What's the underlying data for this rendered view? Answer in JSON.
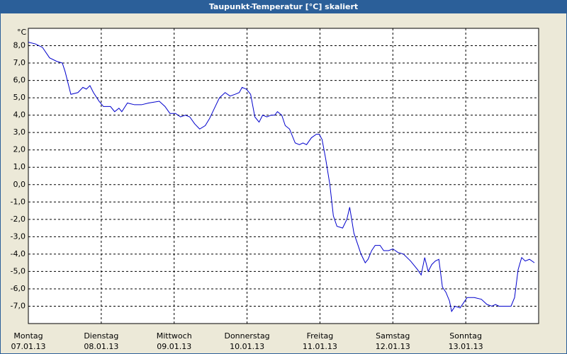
{
  "chart_data": {
    "type": "line",
    "title": "Taupunkt-Temperatur [°C] skaliert",
    "unit": "°C",
    "xlim": [
      0,
      7
    ],
    "xticks": [
      {
        "value": 0,
        "label": "Montag",
        "date": "07.01.13"
      },
      {
        "value": 1,
        "label": "Dienstag",
        "date": "08.01.13"
      },
      {
        "value": 2,
        "label": "Mittwoch",
        "date": "09.01.13"
      },
      {
        "value": 3,
        "label": "Donnerstag",
        "date": "10.01.13"
      },
      {
        "value": 4,
        "label": "Freitag",
        "date": "11.01.13"
      },
      {
        "value": 5,
        "label": "Samstag",
        "date": "12.01.13"
      },
      {
        "value": 6,
        "label": "Sonntag",
        "date": "13.01.13"
      }
    ],
    "ylim": [
      -8,
      9
    ],
    "yticks": [
      {
        "value": 8,
        "label": "8,0"
      },
      {
        "value": 7,
        "label": "7,0"
      },
      {
        "value": 6,
        "label": "6,0"
      },
      {
        "value": 5,
        "label": "5,0"
      },
      {
        "value": 4,
        "label": "4,0"
      },
      {
        "value": 3,
        "label": "3,0"
      },
      {
        "value": 2,
        "label": "2,0"
      },
      {
        "value": 1,
        "label": "1,0"
      },
      {
        "value": 0,
        "label": "0,0"
      },
      {
        "value": -1,
        "label": "-1,0"
      },
      {
        "value": -2,
        "label": "-2,0"
      },
      {
        "value": -3,
        "label": "-3,0"
      },
      {
        "value": -4,
        "label": "-4,0"
      },
      {
        "value": -5,
        "label": "-5,0"
      },
      {
        "value": -6,
        "label": "-6,0"
      },
      {
        "value": -7,
        "label": "-7,0"
      }
    ],
    "grid": true,
    "series": [
      {
        "color": "#0000cc",
        "x": [
          0,
          0.097,
          0.194,
          0.291,
          0.388,
          0.466,
          0.505,
          0.583,
          0.68,
          0.748,
          0.796,
          0.845,
          0.893,
          0.971,
          1.029,
          1.126,
          1.184,
          1.243,
          1.282,
          1.359,
          1.456,
          1.553,
          1.65,
          1.796,
          1.874,
          1.942,
          2.019,
          2.087,
          2.155,
          2.214,
          2.282,
          2.35,
          2.427,
          2.485,
          2.553,
          2.621,
          2.699,
          2.767,
          2.835,
          2.893,
          2.932,
          2.99,
          3.049,
          3.107,
          3.165,
          3.214,
          3.272,
          3.33,
          3.379,
          3.417,
          3.476,
          3.524,
          3.583,
          3.66,
          3.718,
          3.767,
          3.816,
          3.883,
          3.951,
          3.99,
          4.029,
          4.078,
          4.136,
          4.184,
          4.233,
          4.311,
          4.369,
          4.408,
          4.466,
          4.515,
          4.563,
          4.621,
          4.66,
          4.709,
          4.757,
          4.825,
          4.874,
          4.942,
          5.0,
          5.068,
          5.146,
          5.243,
          5.34,
          5.388,
          5.437,
          5.485,
          5.534,
          5.583,
          5.631,
          5.68,
          5.728,
          5.777,
          5.806,
          5.854,
          5.922,
          5.971,
          6.019,
          6.117,
          6.214,
          6.291,
          6.359,
          6.408,
          6.456,
          6.553,
          6.621,
          6.67,
          6.718,
          6.767,
          6.816,
          6.874,
          6.942
        ],
        "values": [
          8.2,
          8.1,
          7.9,
          7.3,
          7.1,
          7.0,
          6.5,
          5.2,
          5.3,
          5.6,
          5.5,
          5.7,
          5.3,
          4.8,
          4.5,
          4.5,
          4.2,
          4.4,
          4.2,
          4.7,
          4.6,
          4.6,
          4.7,
          4.8,
          4.5,
          4.1,
          4.1,
          3.9,
          4.0,
          3.9,
          3.5,
          3.2,
          3.4,
          3.8,
          4.4,
          5.0,
          5.3,
          5.1,
          5.2,
          5.3,
          5.6,
          5.5,
          5.2,
          3.9,
          3.6,
          4.0,
          3.9,
          4.0,
          4.0,
          4.2,
          4.0,
          3.4,
          3.2,
          2.4,
          2.3,
          2.4,
          2.3,
          2.7,
          2.9,
          2.9,
          2.6,
          1.5,
          0.0,
          -1.8,
          -2.4,
          -2.5,
          -2.0,
          -1.3,
          -2.8,
          -3.4,
          -4.0,
          -4.5,
          -4.3,
          -3.8,
          -3.5,
          -3.5,
          -3.8,
          -3.8,
          -3.7,
          -3.9,
          -4.0,
          -4.4,
          -4.9,
          -5.2,
          -4.2,
          -5.0,
          -4.6,
          -4.4,
          -4.3,
          -5.9,
          -6.2,
          -6.7,
          -7.3,
          -7.0,
          -7.1,
          -6.8,
          -6.5,
          -6.5,
          -6.6,
          -6.9,
          -7.0,
          -6.9,
          -7.0,
          -7.0,
          -7.0,
          -6.5,
          -4.9,
          -4.2,
          -4.4,
          -4.3,
          -4.5
        ]
      }
    ]
  }
}
